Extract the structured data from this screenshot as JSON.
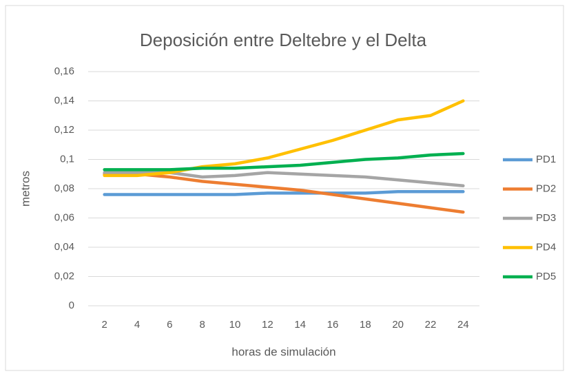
{
  "chart_data": {
    "type": "line",
    "title": "Deposición entre Deltebre y el Delta",
    "x_label": "horas de simulación",
    "y_label": "metros",
    "categories": [
      "2",
      "4",
      "6",
      "8",
      "10",
      "12",
      "14",
      "16",
      "18",
      "20",
      "22",
      "24"
    ],
    "series": [
      {
        "name": "PD1",
        "color": "#5b9bd5",
        "values": [
          0.076,
          0.076,
          0.076,
          0.076,
          0.076,
          0.077,
          0.077,
          0.077,
          0.077,
          0.078,
          0.078,
          0.078
        ]
      },
      {
        "name": "PD2",
        "color": "#ed7d31",
        "values": [
          0.09,
          0.09,
          0.088,
          0.085,
          0.083,
          0.081,
          0.079,
          0.076,
          0.073,
          0.07,
          0.067,
          0.064
        ]
      },
      {
        "name": "PD3",
        "color": "#a5a5a5",
        "values": [
          0.091,
          0.091,
          0.091,
          0.088,
          0.089,
          0.091,
          0.09,
          0.089,
          0.088,
          0.086,
          0.084,
          0.082
        ]
      },
      {
        "name": "PD4",
        "color": "#ffc000",
        "values": [
          0.089,
          0.089,
          0.091,
          0.095,
          0.097,
          0.101,
          0.107,
          0.113,
          0.12,
          0.127,
          0.13,
          0.14
        ]
      },
      {
        "name": "PD5",
        "color": "#00b050",
        "values": [
          0.093,
          0.093,
          0.093,
          0.094,
          0.094,
          0.095,
          0.096,
          0.098,
          0.1,
          0.101,
          0.103,
          0.104
        ]
      }
    ],
    "ylim": [
      0,
      0.16
    ],
    "yticks": [
      0,
      {
        "value": 0.02,
        "label": "0,02"
      },
      {
        "value": 0.04,
        "label": "0,04"
      },
      {
        "value": 0.06,
        "label": "0,06"
      },
      {
        "value": 0.08,
        "label": "0,08"
      },
      {
        "value": 0.1,
        "label": "0,1"
      },
      {
        "value": 0.12,
        "label": "0,12"
      },
      {
        "value": 0.14,
        "label": "0,14"
      },
      {
        "value": 0.16,
        "label": "0,16"
      }
    ],
    "grid": true,
    "legend": "right"
  }
}
